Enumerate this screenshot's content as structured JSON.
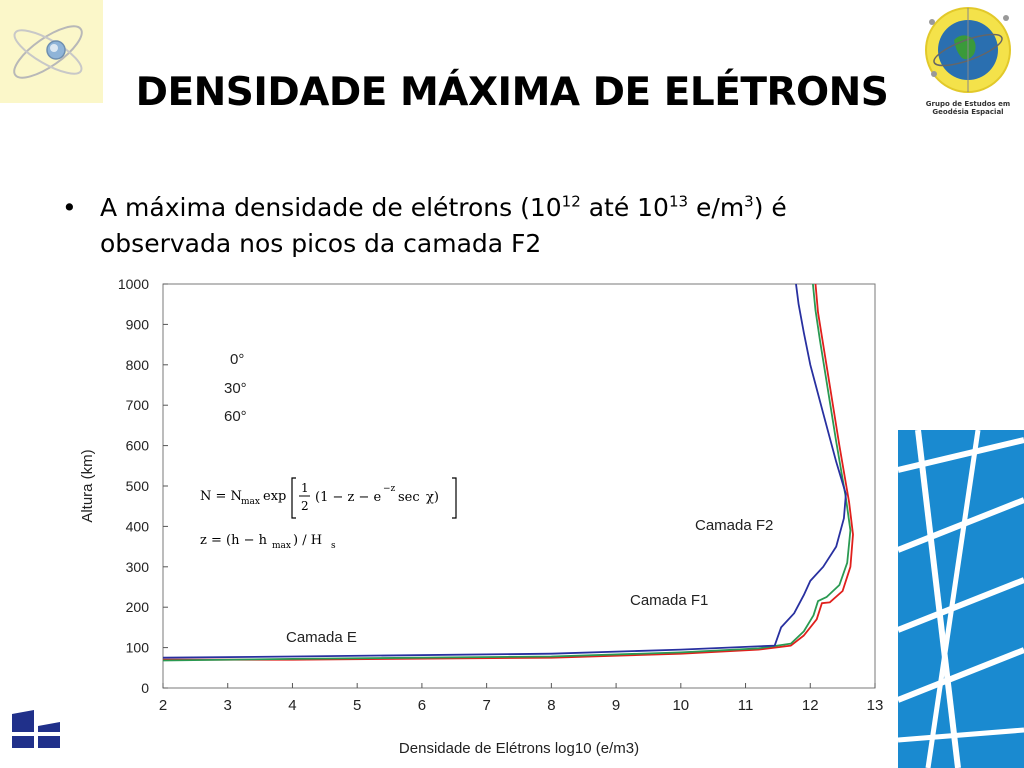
{
  "slide": {
    "title": "DENSIDADE MÁXIMA DE ELÉTRONS",
    "logo_caption_line1": "Grupo de Estudos em",
    "logo_caption_line2": "Geodésia Espacial",
    "bullet": {
      "symbol": "•",
      "part1": "A máxima densidade de elétrons (10",
      "sup1": "12",
      "part2": " até 10",
      "sup2": "13",
      "part3": " e/m",
      "sup3": "3",
      "part4": ") é",
      "line2": "observada nos picos da camada F2"
    },
    "formula": {
      "line1": "N = N_max exp[ 1/2 (1 − z − e^−z secχ) ]",
      "line2": "z = (h − h_max) / H_s"
    }
  },
  "chart_data": {
    "type": "line",
    "xlabel": "Densidade de Elétrons log10 (e/m3)",
    "ylabel": "Altura (km)",
    "xlim": [
      2,
      13
    ],
    "ylim": [
      0,
      1000
    ],
    "xticks": [
      "2",
      "3",
      "4",
      "5",
      "6",
      "7",
      "8",
      "9",
      "10",
      "11",
      "12",
      "13"
    ],
    "yticks": [
      "0",
      "100",
      "200",
      "300",
      "400",
      "500",
      "600",
      "700",
      "800",
      "900",
      "1000"
    ],
    "legend_placement": "upper-left",
    "annotations": [
      "Camada F2",
      "Camada F1",
      "Camada E"
    ],
    "series": [
      {
        "name": "0°",
        "color": "#e0201c",
        "x": [
          2.0,
          4.0,
          8.0,
          10.0,
          11.2,
          11.7,
          11.9,
          12.1,
          12.18,
          12.3,
          12.5,
          12.62,
          12.66,
          12.6,
          12.45,
          12.3,
          12.2,
          12.12,
          12.08
        ],
        "y": [
          70,
          70,
          75,
          85,
          95,
          105,
          130,
          170,
          210,
          212,
          240,
          300,
          380,
          460,
          600,
          750,
          850,
          930,
          1000
        ]
      },
      {
        "name": "30°",
        "color": "#2a9a52",
        "x": [
          2.0,
          4.0,
          8.0,
          10.0,
          11.2,
          11.7,
          11.9,
          12.05,
          12.12,
          12.25,
          12.45,
          12.57,
          12.62,
          12.55,
          12.4,
          12.25,
          12.15,
          12.08,
          12.04
        ],
        "y": [
          68,
          72,
          78,
          88,
          98,
          110,
          140,
          180,
          215,
          225,
          255,
          310,
          390,
          470,
          610,
          760,
          860,
          935,
          1000
        ]
      },
      {
        "name": "60°",
        "color": "#2830a0",
        "x": [
          2.0,
          4.0,
          8.0,
          10.0,
          11.45,
          11.55,
          11.75,
          11.9,
          12.0,
          12.2,
          12.4,
          12.52,
          12.55,
          12.4,
          12.2,
          12.0,
          11.9,
          11.82,
          11.78
        ],
        "y": [
          75,
          78,
          85,
          95,
          105,
          150,
          185,
          230,
          265,
          300,
          350,
          420,
          480,
          560,
          680,
          800,
          880,
          950,
          1000
        ]
      }
    ]
  }
}
